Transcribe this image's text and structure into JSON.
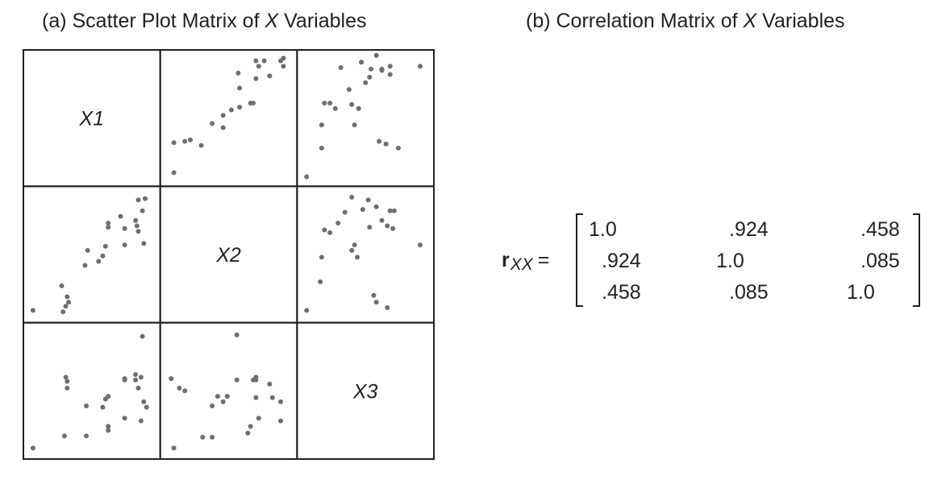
{
  "titles": {
    "a_prefix": "(a) Scatter Plot Matrix of ",
    "a_var": "X",
    "a_suffix": " Variables",
    "b_prefix": "(b) Correlation Matrix of ",
    "b_var": "X",
    "b_suffix": " Variables"
  },
  "chart_data": [
    {
      "type": "scatter",
      "title": "(a) Scatter Plot Matrix of X Variables",
      "variables": [
        "X1",
        "X2",
        "X3"
      ],
      "point_color": "#6d6e71",
      "grid": false,
      "panels": [
        {
          "row": 0,
          "col": 1,
          "x_var": "X2",
          "y_var": "X1",
          "points": [
            [
              0.1,
              0.1
            ],
            [
              0.1,
              0.32
            ],
            [
              0.18,
              0.33
            ],
            [
              0.22,
              0.34
            ],
            [
              0.3,
              0.3
            ],
            [
              0.38,
              0.46
            ],
            [
              0.46,
              0.43
            ],
            [
              0.46,
              0.52
            ],
            [
              0.52,
              0.56
            ],
            [
              0.58,
              0.58
            ],
            [
              0.66,
              0.61
            ],
            [
              0.68,
              0.61
            ],
            [
              0.58,
              0.72
            ],
            [
              0.57,
              0.83
            ],
            [
              0.7,
              0.79
            ],
            [
              0.72,
              0.88
            ],
            [
              0.8,
              0.81
            ],
            [
              0.7,
              0.92
            ],
            [
              0.88,
              0.92
            ],
            [
              0.9,
              0.88
            ],
            [
              0.9,
              0.94
            ],
            [
              0.76,
              0.92
            ]
          ]
        },
        {
          "row": 0,
          "col": 2,
          "x_var": "X3",
          "y_var": "X1",
          "points": [
            [
              0.07,
              0.07
            ],
            [
              0.18,
              0.28
            ],
            [
              0.18,
              0.45
            ],
            [
              0.2,
              0.61
            ],
            [
              0.24,
              0.61
            ],
            [
              0.28,
              0.57
            ],
            [
              0.38,
              0.71
            ],
            [
              0.32,
              0.87
            ],
            [
              0.42,
              0.45
            ],
            [
              0.4,
              0.6
            ],
            [
              0.45,
              0.57
            ],
            [
              0.5,
              0.76
            ],
            [
              0.53,
              0.8
            ],
            [
              0.54,
              0.86
            ],
            [
              0.58,
              0.96
            ],
            [
              0.47,
              0.91
            ],
            [
              0.47,
              0.91
            ],
            [
              0.62,
              0.85
            ],
            [
              0.68,
              0.88
            ],
            [
              0.68,
              0.82
            ],
            [
              0.62,
              0.86
            ],
            [
              0.6,
              0.33
            ],
            [
              0.65,
              0.31
            ],
            [
              0.74,
              0.28
            ],
            [
              0.9,
              0.88
            ]
          ]
        },
        {
          "row": 1,
          "col": 0,
          "x_var": "X1",
          "y_var": "X2",
          "points": [
            [
              0.07,
              0.09
            ],
            [
              0.29,
              0.08
            ],
            [
              0.31,
              0.12
            ],
            [
              0.32,
              0.19
            ],
            [
              0.33,
              0.15
            ],
            [
              0.28,
              0.27
            ],
            [
              0.45,
              0.42
            ],
            [
              0.47,
              0.53
            ],
            [
              0.55,
              0.45
            ],
            [
              0.58,
              0.49
            ],
            [
              0.6,
              0.56
            ],
            [
              0.62,
              0.7
            ],
            [
              0.62,
              0.73
            ],
            [
              0.71,
              0.78
            ],
            [
              0.74,
              0.69
            ],
            [
              0.74,
              0.57
            ],
            [
              0.82,
              0.75
            ],
            [
              0.83,
              0.71
            ],
            [
              0.87,
              0.82
            ],
            [
              0.89,
              0.91
            ],
            [
              0.89,
              0.91
            ],
            [
              0.84,
              0.67
            ],
            [
              0.88,
              0.58
            ],
            [
              0.84,
              0.9
            ]
          ]
        },
        {
          "row": 1,
          "col": 2,
          "x_var": "X3",
          "y_var": "X2",
          "points": [
            [
              0.07,
              0.09
            ],
            [
              0.17,
              0.3
            ],
            [
              0.18,
              0.48
            ],
            [
              0.2,
              0.68
            ],
            [
              0.24,
              0.66
            ],
            [
              0.3,
              0.73
            ],
            [
              0.35,
              0.81
            ],
            [
              0.4,
              0.92
            ],
            [
              0.44,
              0.48
            ],
            [
              0.4,
              0.53
            ],
            [
              0.42,
              0.57
            ],
            [
              0.48,
              0.83
            ],
            [
              0.52,
              0.9
            ],
            [
              0.53,
              0.7
            ],
            [
              0.58,
              0.85
            ],
            [
              0.62,
              0.75
            ],
            [
              0.56,
              0.2
            ],
            [
              0.58,
              0.15
            ],
            [
              0.66,
              0.11
            ],
            [
              0.68,
              0.82
            ],
            [
              0.66,
              0.71
            ],
            [
              0.7,
              0.69
            ],
            [
              0.71,
              0.82
            ],
            [
              0.9,
              0.57
            ]
          ]
        },
        {
          "row": 2,
          "col": 0,
          "x_var": "X1",
          "y_var": "X3",
          "points": [
            [
              0.07,
              0.08
            ],
            [
              0.3,
              0.17
            ],
            [
              0.32,
              0.52
            ],
            [
              0.32,
              0.57
            ],
            [
              0.31,
              0.6
            ],
            [
              0.46,
              0.39
            ],
            [
              0.46,
              0.17
            ],
            [
              0.58,
              0.38
            ],
            [
              0.6,
              0.44
            ],
            [
              0.62,
              0.46
            ],
            [
              0.62,
              0.24
            ],
            [
              0.62,
              0.21
            ],
            [
              0.74,
              0.3
            ],
            [
              0.74,
              0.59
            ],
            [
              0.82,
              0.58
            ],
            [
              0.82,
              0.62
            ],
            [
              0.84,
              0.52
            ],
            [
              0.86,
              0.6
            ],
            [
              0.88,
              0.42
            ],
            [
              0.9,
              0.38
            ],
            [
              0.86,
              0.28
            ],
            [
              0.87,
              0.9
            ],
            [
              0.74,
              0.58
            ]
          ]
        },
        {
          "row": 2,
          "col": 1,
          "x_var": "X2",
          "y_var": "X3",
          "points": [
            [
              0.1,
              0.08
            ],
            [
              0.08,
              0.59
            ],
            [
              0.14,
              0.52
            ],
            [
              0.18,
              0.5
            ],
            [
              0.31,
              0.16
            ],
            [
              0.38,
              0.16
            ],
            [
              0.38,
              0.39
            ],
            [
              0.42,
              0.46
            ],
            [
              0.46,
              0.42
            ],
            [
              0.49,
              0.46
            ],
            [
              0.56,
              0.58
            ],
            [
              0.56,
              0.91
            ],
            [
              0.68,
              0.58
            ],
            [
              0.7,
              0.58
            ],
            [
              0.7,
              0.6
            ],
            [
              0.7,
              0.45
            ],
            [
              0.64,
              0.19
            ],
            [
              0.66,
              0.24
            ],
            [
              0.72,
              0.3
            ],
            [
              0.8,
              0.55
            ],
            [
              0.82,
              0.45
            ],
            [
              0.88,
              0.28
            ],
            [
              0.88,
              0.42
            ]
          ]
        }
      ]
    },
    {
      "type": "table",
      "title": "(b) Correlation Matrix of X Variables",
      "symbol": "r",
      "subscript": "XX",
      "equals": "=",
      "rows": [
        [
          "1.0",
          ".924",
          ".458"
        ],
        [
          ".924",
          "1.0",
          ".085"
        ],
        [
          ".458",
          ".085",
          "1.0"
        ]
      ]
    }
  ]
}
